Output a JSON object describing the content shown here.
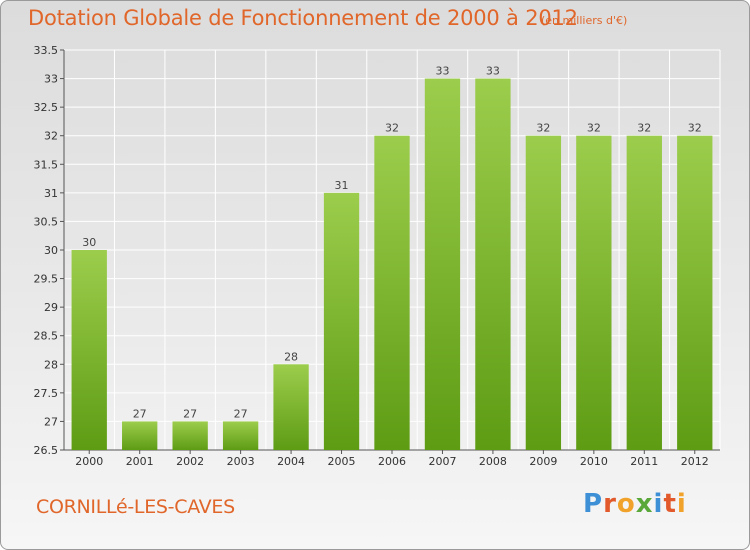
{
  "header": {
    "title": "Dotation Globale de Fonctionnement de 2000 à 2012",
    "subtitle": "(en milliers d'€)"
  },
  "footer": {
    "place": "CORNILLé-LES-CAVES",
    "logo_letters": [
      "P",
      "r",
      "o",
      "x",
      "i",
      "t",
      "i"
    ]
  },
  "colors": {
    "title": "#e0662a",
    "bar_top": "#9ccd4c",
    "bar_bottom": "#5e9c14",
    "grid": "#ffffff"
  },
  "chart_data": {
    "type": "bar",
    "title": "Dotation Globale de Fonctionnement de 2000 à 2012",
    "subtitle": "(en milliers d'€)",
    "xlabel": "",
    "ylabel": "",
    "categories": [
      "2000",
      "2001",
      "2002",
      "2003",
      "2004",
      "2005",
      "2006",
      "2007",
      "2008",
      "2009",
      "2010",
      "2011",
      "2012"
    ],
    "values": [
      30,
      27,
      27,
      27,
      28,
      31,
      32,
      33,
      33,
      32,
      32,
      32,
      32
    ],
    "ylim": [
      26.5,
      33.5
    ],
    "yticks": [
      "26.5",
      "27",
      "27.5",
      "28",
      "28.5",
      "29",
      "29.5",
      "30",
      "30.5",
      "31",
      "31.5",
      "32",
      "32.5",
      "33",
      "33.5"
    ],
    "data_labels": true,
    "grid": true,
    "legend": "none"
  }
}
